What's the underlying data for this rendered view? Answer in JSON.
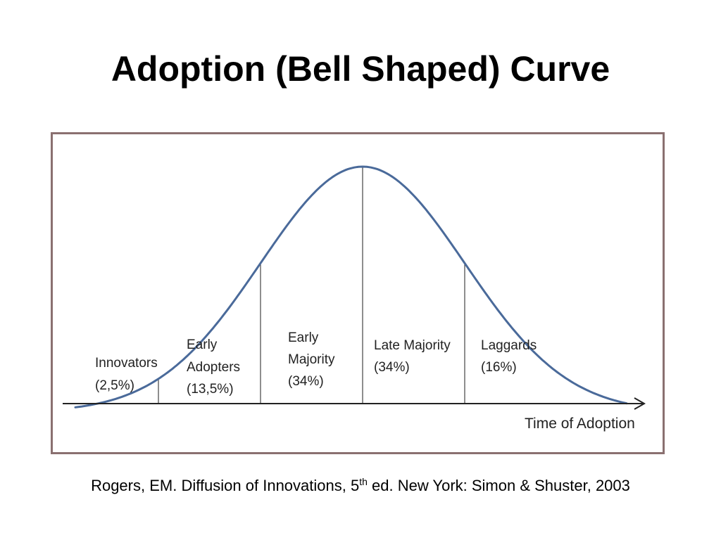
{
  "title": "Adoption (Bell Shaped) Curve",
  "citation": {
    "prefix": "Rogers, EM. Diffusion of Innovations, 5",
    "superscript": "th",
    "suffix": " ed. New York: Simon & Shuster, 2003"
  },
  "colors": {
    "curve": "#4a6a9a",
    "divider": "#444444",
    "axis": "#222222",
    "frame": "#8a7070"
  },
  "chart_data": {
    "type": "line",
    "title": "",
    "xlabel": "Time of Adoption",
    "ylabel": "",
    "x_ticks_shown": false,
    "y_ticks_shown": false,
    "grid": false,
    "segments": [
      {
        "name": "Innovators",
        "percent": "(2,5%)",
        "share": 2.5
      },
      {
        "name": "Early Adopters",
        "percent": "(13,5%)",
        "share": 13.5
      },
      {
        "name": "Early Majority",
        "percent": "(34%)",
        "share": 34
      },
      {
        "name": "Late Majority",
        "percent": "(34%)",
        "share": 34
      },
      {
        "name": "Laggards",
        "percent": "(16%)",
        "share": 16
      }
    ]
  }
}
